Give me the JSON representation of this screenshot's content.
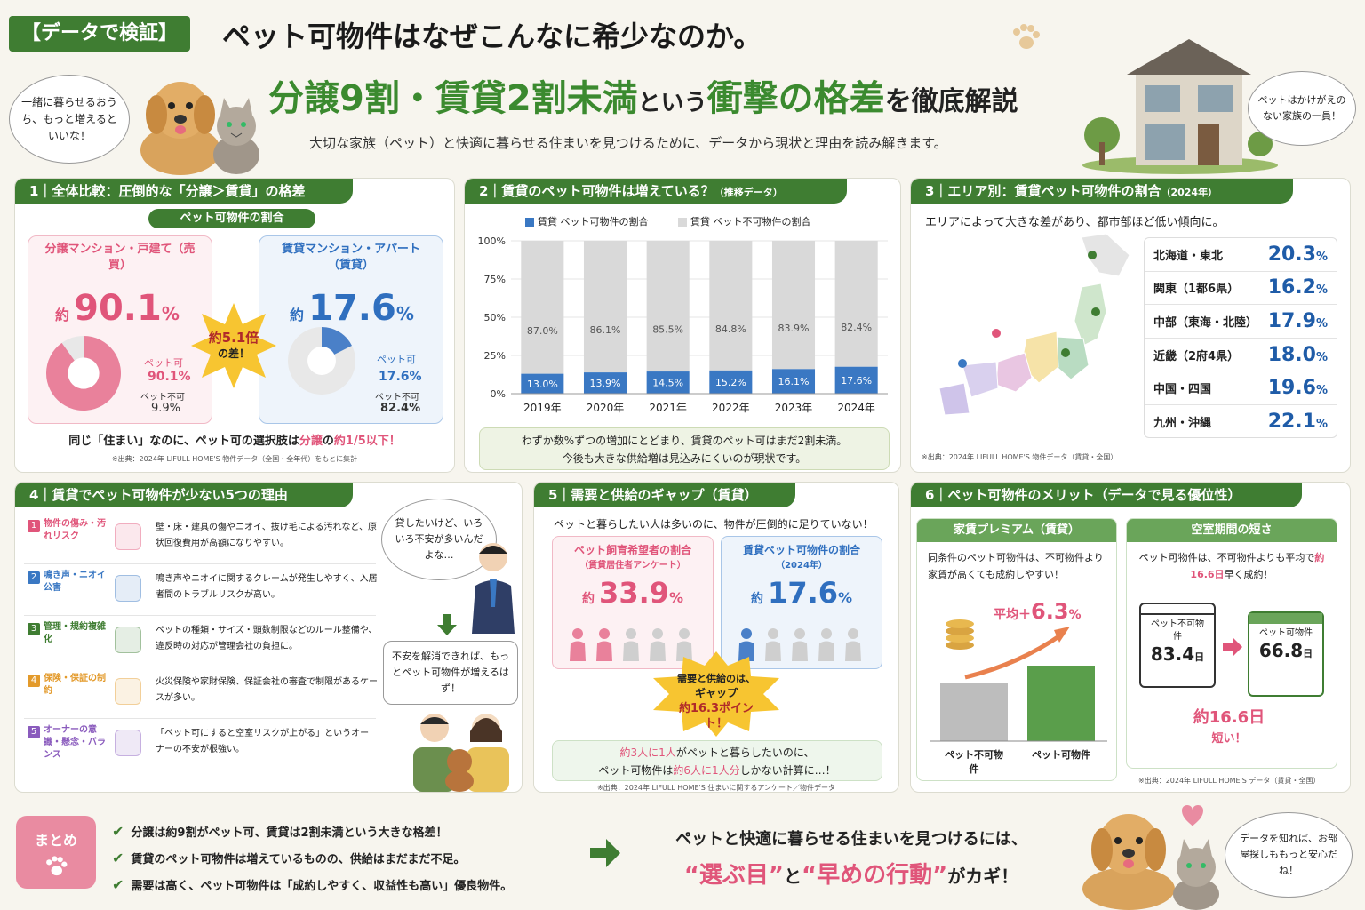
{
  "header": {
    "tag": "【データで検証】",
    "title1": "ペット可物件はなぜこんなに希少なのか。",
    "title2a": "分譲9割・賃貸2割未満",
    "title2b": "という",
    "title2c": "衝撃の格差",
    "title2d": "を徹底解説",
    "subtitle": "大切な家族（ペット）と快適に暮らせる住まいを見つけるために、データから現状と理由を読み解きます。",
    "bubble_left": "一緒に暮らせるおうち、もっと増えるといいな！",
    "bubble_right": "ペットはかけがえのない家族の一員！"
  },
  "s1": {
    "heading": "1｜全体比較：圧倒的な「分譲＞賃貸」の格差",
    "pill": "ペット可物件の割合",
    "left_title": "分譲マンション・戸建て（売買）",
    "left_prefix": "約",
    "left_value": "90.1",
    "left_unit": "%",
    "left_pet_label": "ペット可",
    "left_pet_value": "90.1%",
    "left_nopet_label": "ペット不可",
    "left_nopet_value": "9.9%",
    "right_title": "賃貸マンション・アパート（賃貸）",
    "right_prefix": "約",
    "right_value": "17.6",
    "right_unit": "%",
    "right_pet_label": "ペット可",
    "right_pet_value": "17.6%",
    "right_nopet_label": "ペット不可",
    "right_nopet_value": "82.4%",
    "burst_a": "約5.1倍",
    "burst_b": "の差！",
    "note_a": "同じ「住まい」なのに、ペット可の選択肢は",
    "note_b": "分譲",
    "note_c": "の",
    "note_d": "約1/5以下！",
    "source": "※出典：2024年 LIFULL HOME'S 物件データ（全国・全年代）をもとに集計"
  },
  "s2": {
    "heading": "2｜賃貸のペット可物件は増えている？",
    "heading_sub": "（推移データ）",
    "legend_pet": "賃貸 ペット可物件の割合",
    "legend_nopet": "賃貸 ペット不可物件の割合",
    "note1": "わずか数%ずつの増加にとどまり、賃貸のペット可はまだ2割未満。",
    "note2": "今後も大きな供給増は見込みにくいのが現状です。"
  },
  "chart_data": {
    "type": "bar",
    "stacked": true,
    "categories": [
      "2019年",
      "2020年",
      "2021年",
      "2022年",
      "2023年",
      "2024年"
    ],
    "series": [
      {
        "name": "賃貸 ペット可物件の割合",
        "values": [
          13.0,
          13.9,
          14.5,
          15.2,
          16.1,
          17.6
        ],
        "labels": [
          "13.0%",
          "13.9%",
          "14.5%",
          "15.2%",
          "16.1%",
          "17.6%"
        ],
        "color": "#3a78c3"
      },
      {
        "name": "賃貸 ペット不可物件の割合",
        "values": [
          87.0,
          86.1,
          85.5,
          84.8,
          83.9,
          82.4
        ],
        "labels": [
          "87.0%",
          "86.1%",
          "85.5%",
          "84.8%",
          "83.9%",
          "82.4%"
        ],
        "color": "#d9d9d9"
      }
    ],
    "yticks": [
      "100%",
      "75%",
      "50%",
      "25%",
      "0%"
    ],
    "ylim": [
      0,
      100
    ]
  },
  "s3": {
    "heading": "3｜エリア別：賃貸ペット可物件の割合",
    "heading_sub": "（2024年）",
    "intro": "エリアによって大きな差があり、都市部ほど低い傾向に。",
    "rows": [
      {
        "name": "北海道・東北",
        "value": "20.3",
        "unit": "%"
      },
      {
        "name": "関東（1都6県）",
        "value": "16.2",
        "unit": "%"
      },
      {
        "name": "中部（東海・北陸）",
        "value": "17.9",
        "unit": "%"
      },
      {
        "name": "近畿（2府4県）",
        "value": "18.0",
        "unit": "%"
      },
      {
        "name": "中国・四国",
        "value": "19.6",
        "unit": "%"
      },
      {
        "name": "九州・沖縄",
        "value": "22.1",
        "unit": "%"
      }
    ],
    "source": "※出典：2024年 LIFULL HOME'S 物件データ（賃貸・全国）"
  },
  "s4": {
    "heading": "4｜賃貸でペット可物件が少ない5つの理由",
    "items": [
      {
        "tag": "物件の傷み・汚れリスク",
        "text": "壁・床・建具の傷やニオイ、抜け毛による汚れなど、原状回復費用が高額になりやすい。"
      },
      {
        "tag": "鳴き声・ニオイ公害",
        "text": "鳴き声やニオイに関するクレームが発生しやすく、入居者間のトラブルリスクが高い。"
      },
      {
        "tag": "管理・規約複雑化",
        "text": "ペットの種類・サイズ・頭数制限などのルール整備や、違反時の対応が管理会社の負担に。"
      },
      {
        "tag": "保険・保証の制約",
        "text": "火災保険や家財保険、保証会社の審査で制限があるケースが多い。"
      },
      {
        "tag": "オーナーの意識・懸念・バランス",
        "text": "「ペット可にすると空室リスクが上がる」というオーナーの不安が根強い。"
      }
    ],
    "bubble1": "貸したいけど、いろいろ不安が多いんだよな…",
    "bubble2": "不安を解消できれば、もっとペット可物件が増えるはず！"
  },
  "s5": {
    "heading": "5｜需要と供給のギャップ（賃貸）",
    "intro": "ペットと暮らしたい人は多いのに、物件が圧倒的に足りていない！",
    "left_title": "ペット飼育希望者の割合",
    "left_sub": "（賃貸居住者アンケート）",
    "left_prefix": "約",
    "left_value": "33.9",
    "left_unit": "%",
    "right_title": "賃貸ペット可物件の割合",
    "right_sub": "（2024年）",
    "right_prefix": "約",
    "right_value": "17.6",
    "right_unit": "%",
    "burst1": "需要と供給のは、",
    "burst2": "ギャップ",
    "burst3": "約16.3ポイント！",
    "note_a": "約3人に1人",
    "note_b": "がペットと暮らしたいのに、",
    "note_c": "ペット可物件は",
    "note_d": "約6人に1人分",
    "note_e": "しかない計算に…！",
    "source": "※出典：2024年 LIFULL HOME'S 住まいに関するアンケート／物件データ"
  },
  "s6": {
    "heading": "6｜ペット可物件のメリット（データで見る優位性）",
    "left_title": "家賃プレミアム（賃貸）",
    "left_text": "同条件のペット可物件は、不可物件より家賃が高くても成約しやすい！",
    "avg_label": "平均＋",
    "avg_value": "6.3",
    "avg_unit": "%",
    "bar1": "ペット不可物件",
    "bar2": "ペット可物件",
    "right_title": "空室期間の短さ",
    "right_text_a": "ペット可物件は、不可物件よりも平均で",
    "right_text_b": "約16.6日",
    "right_text_c": "早く成約！",
    "cal1_label": "ペット不可物件",
    "cal1_value": "83.4",
    "cal1_unit": "日",
    "cal2_label": "ペット可物件",
    "cal2_value": "66.8",
    "cal2_unit": "日",
    "diff_a": "約16.6日",
    "diff_b": "短い！",
    "source": "※出典：2024年 LIFULL HOME'S データ（賃貸・全国）"
  },
  "summary": {
    "badge": "まとめ",
    "items": [
      "分譲は約9割がペット可、賃貸は2割未満という大きな格差！",
      "賃貸のペット可物件は増えているものの、供給はまだまだ不足。",
      "需要は高く、ペット可物件は「成約しやすく、収益性も高い」優良物件。"
    ],
    "msg1": "ペットと快適に暮らせる住まいを見つけるには、",
    "msg2a": "“選ぶ目”",
    "msg2b": "と",
    "msg2c": "“早めの行動”",
    "msg2d": "がカギ！",
    "bubble": "データを知れば、お部屋探しももっと安心だね！"
  }
}
